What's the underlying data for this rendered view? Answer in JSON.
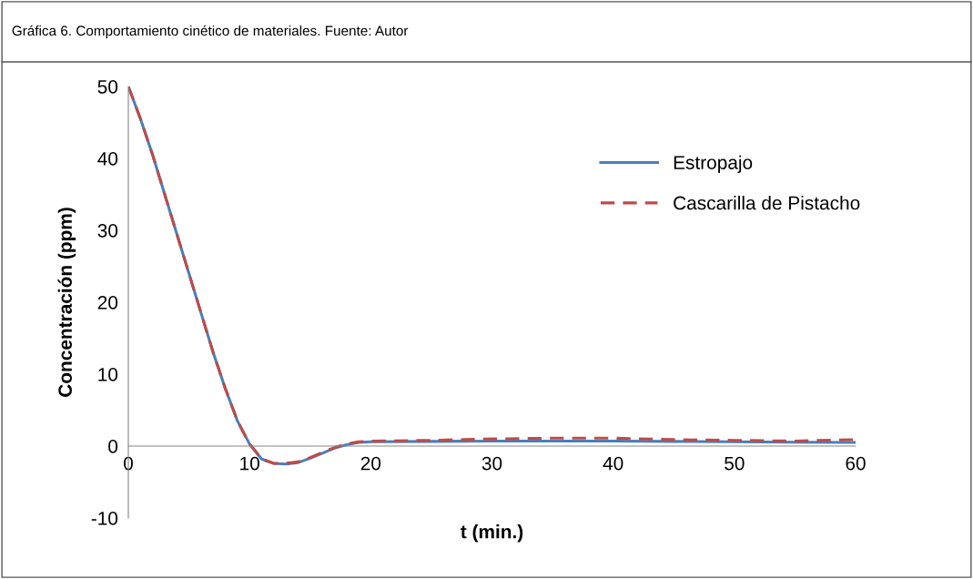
{
  "chart_data": {
    "type": "line",
    "title": "Gráfica 6. Comportamiento cinético de materiales. Fuente: Autor",
    "xlabel": "t (min.)",
    "ylabel": "Concentración (ppm)",
    "xlim": [
      0,
      60
    ],
    "xticks": [
      0,
      10,
      20,
      30,
      40,
      50,
      60
    ],
    "ylim": [
      -10,
      50
    ],
    "yticks": [
      -10,
      0,
      10,
      20,
      30,
      40,
      50
    ],
    "grid": false,
    "legend": "top right",
    "marker": "none",
    "x": [
      0,
      1,
      2,
      3,
      4,
      5,
      6,
      7,
      8,
      9,
      10,
      11,
      12,
      13,
      14,
      15,
      16,
      17,
      18,
      19,
      20,
      25,
      30,
      35,
      40,
      45,
      50,
      55,
      60
    ],
    "series": [
      {
        "name": "Estropajo",
        "color": "#4a7ebb",
        "line_style": "solid",
        "values": [
          50,
          45.5,
          40.5,
          35,
          29.5,
          24,
          18.5,
          13,
          8,
          3.5,
          0.3,
          -1.8,
          -2.4,
          -2.5,
          -2.3,
          -1.7,
          -1,
          -0.3,
          0.2,
          0.5,
          0.6,
          0.65,
          0.7,
          0.7,
          0.7,
          0.65,
          0.6,
          0.55,
          0.5
        ]
      },
      {
        "name": "Cascarilla de Pistacho",
        "color": "#be4b48",
        "line_style": "dashed",
        "values": [
          50,
          45.5,
          40.5,
          35,
          29.5,
          24,
          18.5,
          13,
          8,
          3.5,
          0.3,
          -1.8,
          -2.4,
          -2.4,
          -2.2,
          -1.6,
          -0.9,
          -0.2,
          0.3,
          0.6,
          0.7,
          0.8,
          1.0,
          1.1,
          1.1,
          0.9,
          0.8,
          0.7,
          0.9
        ]
      }
    ]
  }
}
